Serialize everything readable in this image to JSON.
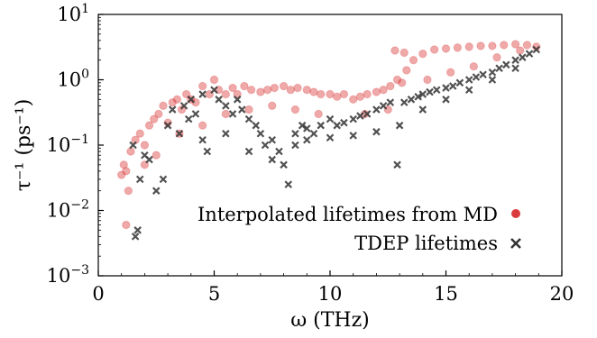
{
  "chart_data": {
    "type": "scatter",
    "xlabel": "ω (THz)",
    "ylabel": "τ⁻¹ (ps⁻¹)",
    "xlim": [
      0,
      20
    ],
    "ylim": [
      0.001,
      10
    ],
    "y_scale": "log",
    "x_ticks": [
      "0",
      "5",
      "10",
      "15",
      "20"
    ],
    "y_ticks": [
      {
        "base": "10",
        "exp": "1"
      },
      {
        "base": "10",
        "exp": "0"
      },
      {
        "base": "10",
        "exp": "−1"
      },
      {
        "base": "10",
        "exp": "−2"
      },
      {
        "base": "10",
        "exp": "−3"
      }
    ],
    "grid": false,
    "legend_position": "lower-right",
    "series": [
      {
        "name": "Interpolated lifetimes from MD",
        "marker": "circle",
        "color": "#d62728",
        "points": [
          [
            1.0,
            0.035
          ],
          [
            1.1,
            0.05
          ],
          [
            1.2,
            0.04
          ],
          [
            1.3,
            0.02
          ],
          [
            1.2,
            0.006
          ],
          [
            1.4,
            0.08
          ],
          [
            1.6,
            0.12
          ],
          [
            1.8,
            0.15
          ],
          [
            2.0,
            0.1
          ],
          [
            2.2,
            0.2
          ],
          [
            2.4,
            0.25
          ],
          [
            2.6,
            0.3
          ],
          [
            2.8,
            0.4
          ],
          [
            3.0,
            0.22
          ],
          [
            3.2,
            0.45
          ],
          [
            3.4,
            0.5
          ],
          [
            3.6,
            0.35
          ],
          [
            3.8,
            0.6
          ],
          [
            4.0,
            0.5
          ],
          [
            4.2,
            0.45
          ],
          [
            4.5,
            0.8
          ],
          [
            4.8,
            0.6
          ],
          [
            5.0,
            1.0
          ],
          [
            5.2,
            0.7
          ],
          [
            5.5,
            0.6
          ],
          [
            5.8,
            0.75
          ],
          [
            6.0,
            0.6
          ],
          [
            6.3,
            0.8
          ],
          [
            6.6,
            0.7
          ],
          [
            7.0,
            0.65
          ],
          [
            7.3,
            0.7
          ],
          [
            7.6,
            0.75
          ],
          [
            8.0,
            0.8
          ],
          [
            8.3,
            0.7
          ],
          [
            8.6,
            0.75
          ],
          [
            9.0,
            0.7
          ],
          [
            9.3,
            0.65
          ],
          [
            9.6,
            0.6
          ],
          [
            10.0,
            0.6
          ],
          [
            10.3,
            0.55
          ],
          [
            10.6,
            0.6
          ],
          [
            11.0,
            0.5
          ],
          [
            11.3,
            0.55
          ],
          [
            11.6,
            0.6
          ],
          [
            12.0,
            0.65
          ],
          [
            12.3,
            0.7
          ],
          [
            12.6,
            0.8
          ],
          [
            12.9,
            1.0
          ],
          [
            13.1,
            0.9
          ],
          [
            13.3,
            1.4
          ],
          [
            13.6,
            2.0
          ],
          [
            14.0,
            2.5
          ],
          [
            14.5,
            2.9
          ],
          [
            15.0,
            3.0
          ],
          [
            15.5,
            3.1
          ],
          [
            16.0,
            3.2
          ],
          [
            16.5,
            3.3
          ],
          [
            17.0,
            3.3
          ],
          [
            17.5,
            3.4
          ],
          [
            18.0,
            3.5
          ],
          [
            18.5,
            3.4
          ],
          [
            18.9,
            3.2
          ],
          [
            12.8,
            2.8
          ],
          [
            13.2,
            2.6
          ],
          [
            14.2,
            1.0
          ],
          [
            15.2,
            1.3
          ],
          [
            16.2,
            1.6
          ],
          [
            17.2,
            2.2
          ],
          [
            18.2,
            2.8
          ],
          [
            11.5,
            0.3
          ],
          [
            12.5,
            0.35
          ],
          [
            9.5,
            0.3
          ],
          [
            8.5,
            0.35
          ],
          [
            7.5,
            0.4
          ],
          [
            6.5,
            0.35
          ],
          [
            5.5,
            0.3
          ],
          [
            4.5,
            0.2
          ],
          [
            3.5,
            0.15
          ],
          [
            2.5,
            0.07
          ],
          [
            2.0,
            0.05
          ]
        ]
      },
      {
        "name": "TDEP lifetimes",
        "marker": "x",
        "color": "#333333",
        "points": [
          [
            1.5,
            0.1
          ],
          [
            1.6,
            0.004
          ],
          [
            1.7,
            0.005
          ],
          [
            1.8,
            0.03
          ],
          [
            2.0,
            0.07
          ],
          [
            2.2,
            0.06
          ],
          [
            2.5,
            0.02
          ],
          [
            2.8,
            0.03
          ],
          [
            3.0,
            0.2
          ],
          [
            3.2,
            0.35
          ],
          [
            3.5,
            0.15
          ],
          [
            3.7,
            0.4
          ],
          [
            3.9,
            0.25
          ],
          [
            4.0,
            0.5
          ],
          [
            4.2,
            0.3
          ],
          [
            4.5,
            0.6
          ],
          [
            4.7,
            0.08
          ],
          [
            5.0,
            0.7
          ],
          [
            5.2,
            0.5
          ],
          [
            5.5,
            0.4
          ],
          [
            5.8,
            0.3
          ],
          [
            6.0,
            0.5
          ],
          [
            6.2,
            0.35
          ],
          [
            6.5,
            0.25
          ],
          [
            6.8,
            0.2
          ],
          [
            7.0,
            0.15
          ],
          [
            7.2,
            0.1
          ],
          [
            7.5,
            0.12
          ],
          [
            7.8,
            0.08
          ],
          [
            8.0,
            0.05
          ],
          [
            8.2,
            0.025
          ],
          [
            8.5,
            0.15
          ],
          [
            8.8,
            0.2
          ],
          [
            9.0,
            0.18
          ],
          [
            9.3,
            0.15
          ],
          [
            9.6,
            0.2
          ],
          [
            10.0,
            0.25
          ],
          [
            10.3,
            0.2
          ],
          [
            10.6,
            0.22
          ],
          [
            11.0,
            0.25
          ],
          [
            11.3,
            0.28
          ],
          [
            11.6,
            0.3
          ],
          [
            12.0,
            0.35
          ],
          [
            12.3,
            0.4
          ],
          [
            12.6,
            0.45
          ],
          [
            12.9,
            0.05
          ],
          [
            13.2,
            0.45
          ],
          [
            13.5,
            0.5
          ],
          [
            13.8,
            0.55
          ],
          [
            14.0,
            0.6
          ],
          [
            14.3,
            0.65
          ],
          [
            14.6,
            0.7
          ],
          [
            15.0,
            0.75
          ],
          [
            15.3,
            0.8
          ],
          [
            15.6,
            0.9
          ],
          [
            16.0,
            1.0
          ],
          [
            16.3,
            1.1
          ],
          [
            16.6,
            1.2
          ],
          [
            17.0,
            1.3
          ],
          [
            17.3,
            1.5
          ],
          [
            17.6,
            1.7
          ],
          [
            18.0,
            2.0
          ],
          [
            18.3,
            2.2
          ],
          [
            18.6,
            2.5
          ],
          [
            18.9,
            2.9
          ],
          [
            9.0,
            0.12
          ],
          [
            10.0,
            0.13
          ],
          [
            11.0,
            0.14
          ],
          [
            12.0,
            0.16
          ],
          [
            13.0,
            0.2
          ],
          [
            14.0,
            0.35
          ],
          [
            15.0,
            0.5
          ],
          [
            16.0,
            0.7
          ],
          [
            17.0,
            1.0
          ],
          [
            18.0,
            1.5
          ],
          [
            6.5,
            0.08
          ],
          [
            7.5,
            0.06
          ],
          [
            8.5,
            0.1
          ],
          [
            5.5,
            0.15
          ],
          [
            4.5,
            0.12
          ]
        ]
      }
    ]
  }
}
